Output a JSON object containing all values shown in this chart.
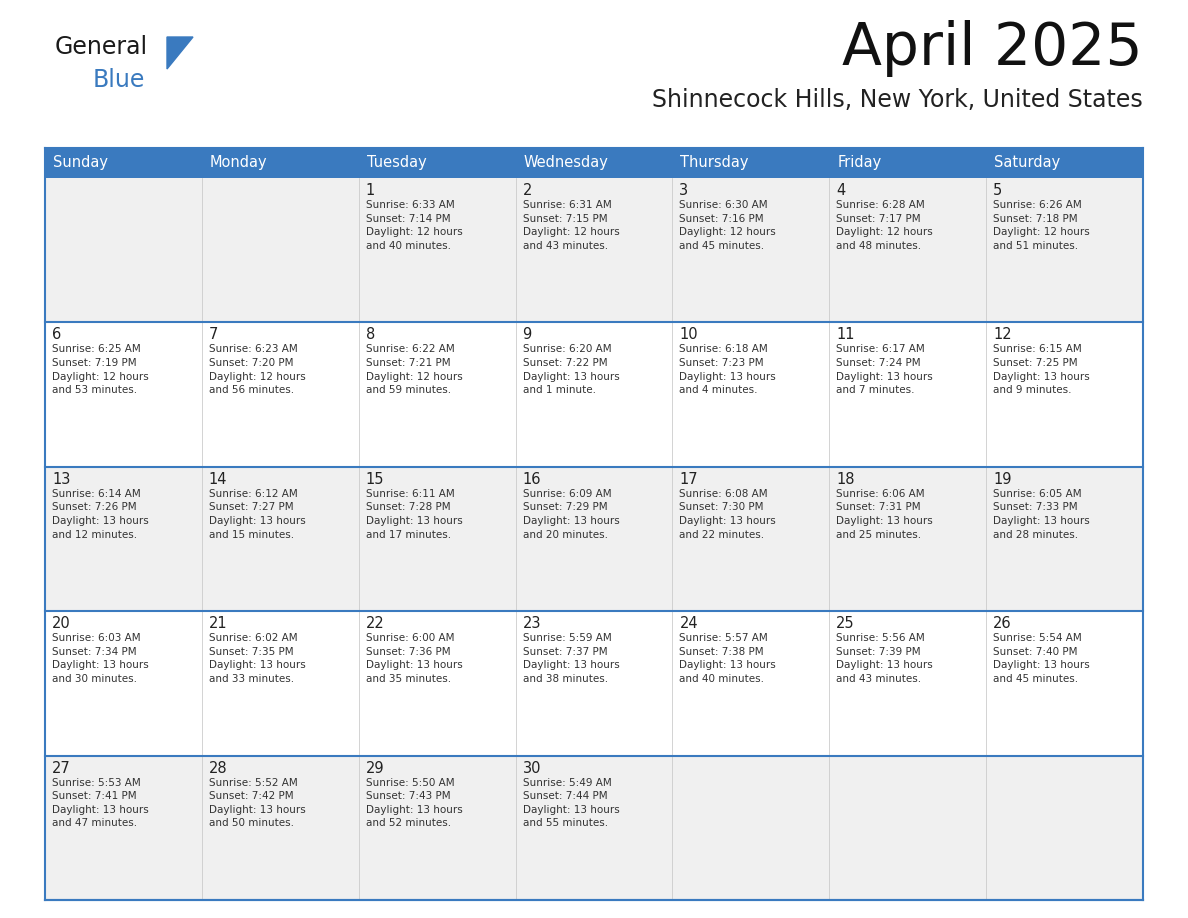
{
  "title": "April 2025",
  "subtitle": "Shinnecock Hills, New York, United States",
  "header_bg": "#3a7abf",
  "header_text": "#ffffff",
  "day_names": [
    "Sunday",
    "Monday",
    "Tuesday",
    "Wednesday",
    "Thursday",
    "Friday",
    "Saturday"
  ],
  "row_bg_light": "#f0f0f0",
  "row_bg_white": "#ffffff",
  "cell_text_color": "#333333",
  "date_text_color": "#222222",
  "border_color": "#3a7abf",
  "logo_general_color": "#1a1a1a",
  "logo_blue_color": "#3a7abf",
  "weeks": [
    [
      {
        "day": "",
        "info": ""
      },
      {
        "day": "",
        "info": ""
      },
      {
        "day": "1",
        "info": "Sunrise: 6:33 AM\nSunset: 7:14 PM\nDaylight: 12 hours\nand 40 minutes."
      },
      {
        "day": "2",
        "info": "Sunrise: 6:31 AM\nSunset: 7:15 PM\nDaylight: 12 hours\nand 43 minutes."
      },
      {
        "day": "3",
        "info": "Sunrise: 6:30 AM\nSunset: 7:16 PM\nDaylight: 12 hours\nand 45 minutes."
      },
      {
        "day": "4",
        "info": "Sunrise: 6:28 AM\nSunset: 7:17 PM\nDaylight: 12 hours\nand 48 minutes."
      },
      {
        "day": "5",
        "info": "Sunrise: 6:26 AM\nSunset: 7:18 PM\nDaylight: 12 hours\nand 51 minutes."
      }
    ],
    [
      {
        "day": "6",
        "info": "Sunrise: 6:25 AM\nSunset: 7:19 PM\nDaylight: 12 hours\nand 53 minutes."
      },
      {
        "day": "7",
        "info": "Sunrise: 6:23 AM\nSunset: 7:20 PM\nDaylight: 12 hours\nand 56 minutes."
      },
      {
        "day": "8",
        "info": "Sunrise: 6:22 AM\nSunset: 7:21 PM\nDaylight: 12 hours\nand 59 minutes."
      },
      {
        "day": "9",
        "info": "Sunrise: 6:20 AM\nSunset: 7:22 PM\nDaylight: 13 hours\nand 1 minute."
      },
      {
        "day": "10",
        "info": "Sunrise: 6:18 AM\nSunset: 7:23 PM\nDaylight: 13 hours\nand 4 minutes."
      },
      {
        "day": "11",
        "info": "Sunrise: 6:17 AM\nSunset: 7:24 PM\nDaylight: 13 hours\nand 7 minutes."
      },
      {
        "day": "12",
        "info": "Sunrise: 6:15 AM\nSunset: 7:25 PM\nDaylight: 13 hours\nand 9 minutes."
      }
    ],
    [
      {
        "day": "13",
        "info": "Sunrise: 6:14 AM\nSunset: 7:26 PM\nDaylight: 13 hours\nand 12 minutes."
      },
      {
        "day": "14",
        "info": "Sunrise: 6:12 AM\nSunset: 7:27 PM\nDaylight: 13 hours\nand 15 minutes."
      },
      {
        "day": "15",
        "info": "Sunrise: 6:11 AM\nSunset: 7:28 PM\nDaylight: 13 hours\nand 17 minutes."
      },
      {
        "day": "16",
        "info": "Sunrise: 6:09 AM\nSunset: 7:29 PM\nDaylight: 13 hours\nand 20 minutes."
      },
      {
        "day": "17",
        "info": "Sunrise: 6:08 AM\nSunset: 7:30 PM\nDaylight: 13 hours\nand 22 minutes."
      },
      {
        "day": "18",
        "info": "Sunrise: 6:06 AM\nSunset: 7:31 PM\nDaylight: 13 hours\nand 25 minutes."
      },
      {
        "day": "19",
        "info": "Sunrise: 6:05 AM\nSunset: 7:33 PM\nDaylight: 13 hours\nand 28 minutes."
      }
    ],
    [
      {
        "day": "20",
        "info": "Sunrise: 6:03 AM\nSunset: 7:34 PM\nDaylight: 13 hours\nand 30 minutes."
      },
      {
        "day": "21",
        "info": "Sunrise: 6:02 AM\nSunset: 7:35 PM\nDaylight: 13 hours\nand 33 minutes."
      },
      {
        "day": "22",
        "info": "Sunrise: 6:00 AM\nSunset: 7:36 PM\nDaylight: 13 hours\nand 35 minutes."
      },
      {
        "day": "23",
        "info": "Sunrise: 5:59 AM\nSunset: 7:37 PM\nDaylight: 13 hours\nand 38 minutes."
      },
      {
        "day": "24",
        "info": "Sunrise: 5:57 AM\nSunset: 7:38 PM\nDaylight: 13 hours\nand 40 minutes."
      },
      {
        "day": "25",
        "info": "Sunrise: 5:56 AM\nSunset: 7:39 PM\nDaylight: 13 hours\nand 43 minutes."
      },
      {
        "day": "26",
        "info": "Sunrise: 5:54 AM\nSunset: 7:40 PM\nDaylight: 13 hours\nand 45 minutes."
      }
    ],
    [
      {
        "day": "27",
        "info": "Sunrise: 5:53 AM\nSunset: 7:41 PM\nDaylight: 13 hours\nand 47 minutes."
      },
      {
        "day": "28",
        "info": "Sunrise: 5:52 AM\nSunset: 7:42 PM\nDaylight: 13 hours\nand 50 minutes."
      },
      {
        "day": "29",
        "info": "Sunrise: 5:50 AM\nSunset: 7:43 PM\nDaylight: 13 hours\nand 52 minutes."
      },
      {
        "day": "30",
        "info": "Sunrise: 5:49 AM\nSunset: 7:44 PM\nDaylight: 13 hours\nand 55 minutes."
      },
      {
        "day": "",
        "info": ""
      },
      {
        "day": "",
        "info": ""
      },
      {
        "day": "",
        "info": ""
      }
    ]
  ]
}
